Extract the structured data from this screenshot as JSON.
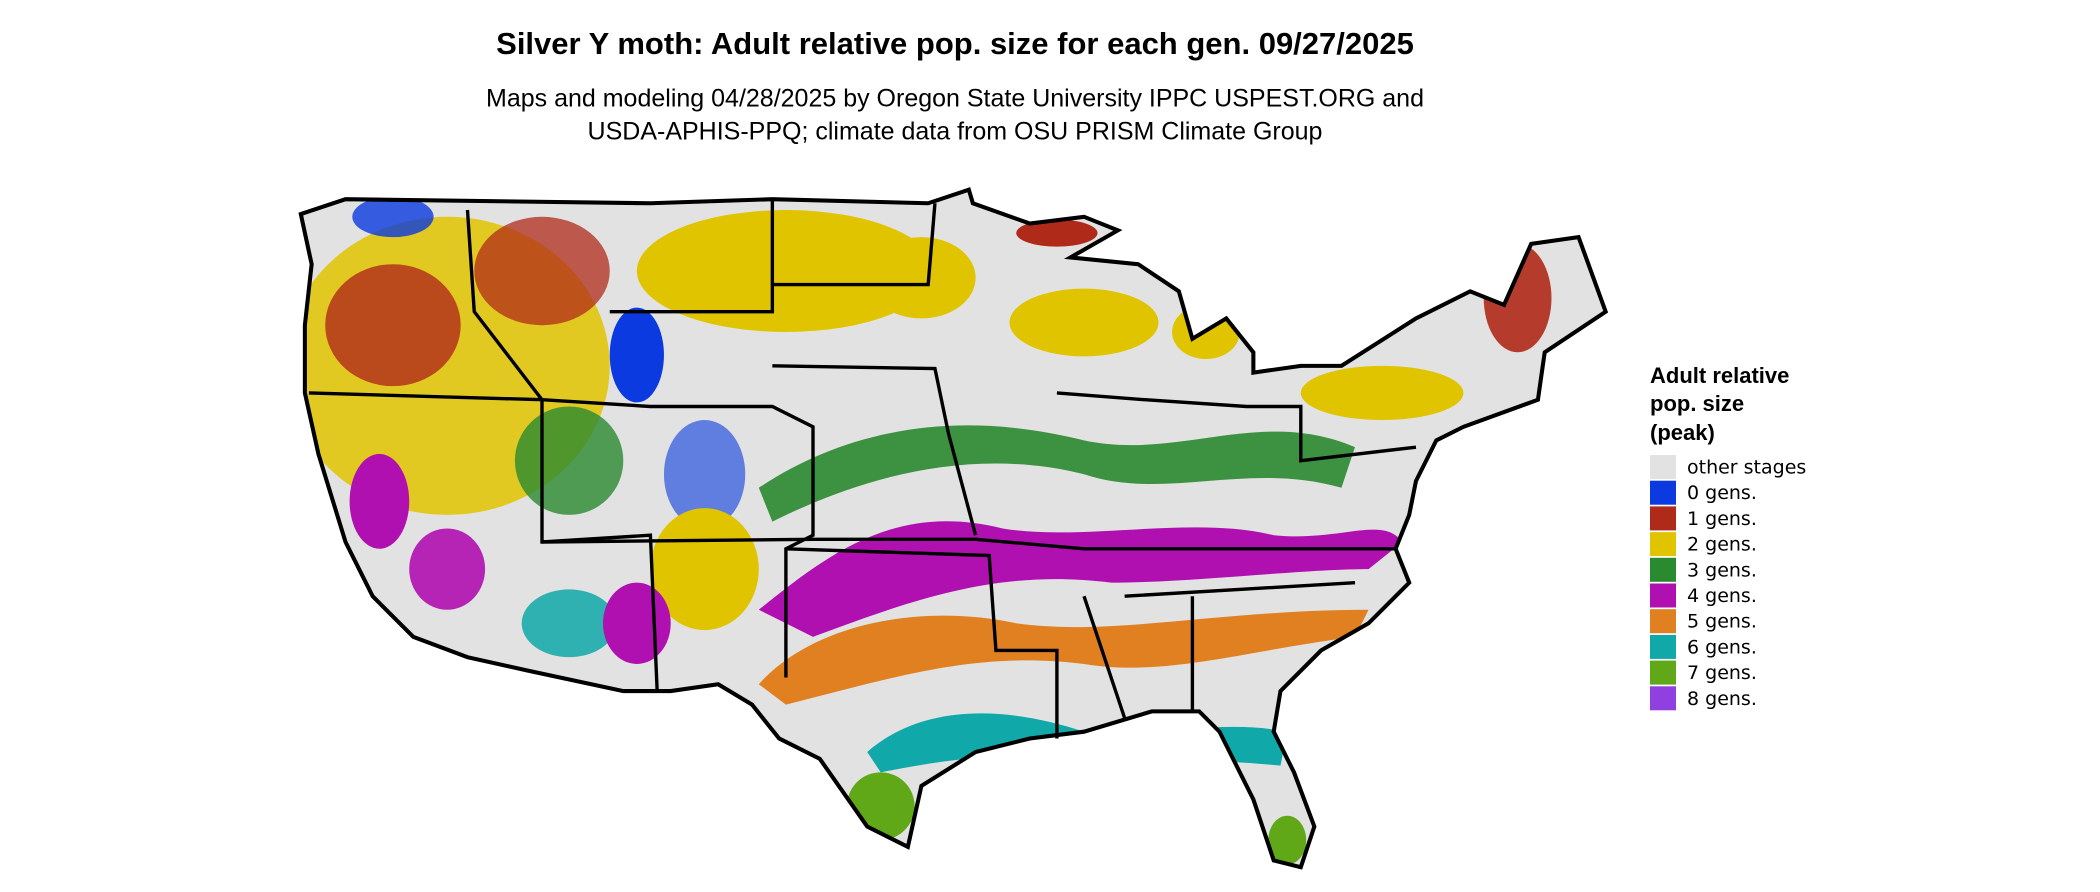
{
  "title": "Silver Y moth: Adult relative pop. size for each gen. 09/27/2025",
  "subtitle": [
    "Maps and modeling 04/28/2025 by Oregon State University IPPC USPEST.ORG and",
    "USDA-APHIS-PPQ; climate data from OSU PRISM Climate Group"
  ],
  "legend": {
    "title": [
      "Adult relative",
      "pop. size",
      "(peak)"
    ],
    "items": [
      {
        "label": "other stages",
        "color": "#e2e2e2"
      },
      {
        "label": "0 gens.",
        "color": "#0a3ae0"
      },
      {
        "label": "1 gens.",
        "color": "#b02a1a"
      },
      {
        "label": "2 gens.",
        "color": "#e0c400"
      },
      {
        "label": "3 gens.",
        "color": "#2a8a30"
      },
      {
        "label": "4 gens.",
        "color": "#b010b0"
      },
      {
        "label": "5 gens.",
        "color": "#e08020"
      },
      {
        "label": "6 gens.",
        "color": "#10a8a8"
      },
      {
        "label": "7 gens.",
        "color": "#60a818"
      },
      {
        "label": "8 gens.",
        "color": "#9040e0"
      }
    ]
  }
}
